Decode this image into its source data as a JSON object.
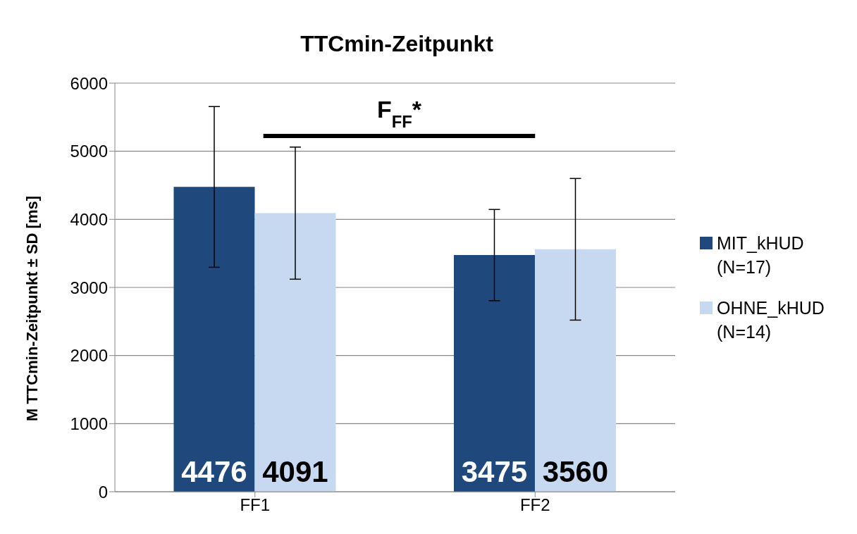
{
  "chart_data": {
    "type": "bar",
    "title": "TTCmin-Zeitpunkt",
    "ylabel": "M TTCmin-Zeitpunkt ± SD [ms]",
    "categories": [
      "FF1",
      "FF2"
    ],
    "series": [
      {
        "name": "MIT_kHUD (N=17)",
        "color": "#1f497d",
        "values": [
          4476,
          3475
        ],
        "errors": [
          1180,
          670
        ]
      },
      {
        "name": "OHNE_kHUD (N=14)",
        "color": "#c6d9f1",
        "values": [
          4091,
          3560
        ],
        "errors": [
          970,
          1040
        ]
      }
    ],
    "ylim": [
      0,
      6000
    ],
    "yticks": [
      0,
      1000,
      2000,
      3000,
      4000,
      5000,
      6000
    ],
    "grid": "y",
    "legend": "right",
    "data_labels": true,
    "annotations": [
      "F$_{FF}$*"
    ]
  }
}
